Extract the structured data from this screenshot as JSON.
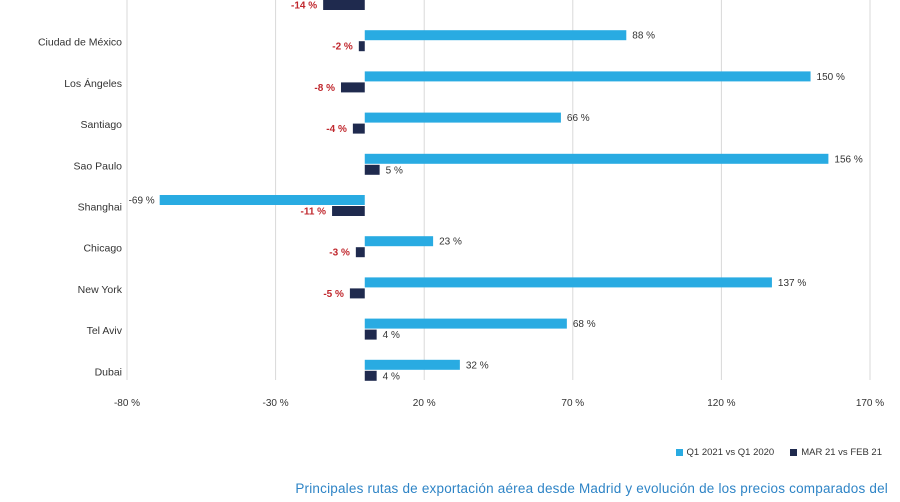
{
  "chart_data": {
    "type": "bar",
    "orientation": "horizontal",
    "categories": [
      "",
      "Ciudad de México",
      "Los Ángeles",
      "Santiago",
      "Sao Paulo",
      "Shanghai",
      "Chicago",
      "New York",
      "Tel Aviv",
      "Dubai"
    ],
    "series": [
      {
        "name": "Q1 2021 vs Q1 2020",
        "color": "#29abe2",
        "values": [
          null,
          88,
          150,
          66,
          156,
          -69,
          23,
          137,
          68,
          32
        ],
        "labels": [
          "",
          "88 %",
          "150 %",
          "66 %",
          "156 %",
          "-69 %",
          "23 %",
          "137 %",
          "68 %",
          "32 %"
        ]
      },
      {
        "name": "MAR 21 vs FEB 21",
        "color": "#1f2a4e",
        "values": [
          -14,
          -2,
          -8,
          -4,
          5,
          -11,
          -3,
          -5,
          4,
          4
        ],
        "labels": [
          "-14 %",
          "-2 %",
          "-8 %",
          "-4 %",
          "5 %",
          "-11 %",
          "-3 %",
          "-5 %",
          "4 %",
          "4 %"
        ]
      }
    ],
    "xlim": [
      -80,
      170
    ],
    "xticks": [
      -80,
      -30,
      20,
      70,
      120,
      170
    ],
    "xtick_labels": [
      "-80 %",
      "-30 %",
      "20 %",
      "70 %",
      "120 %",
      "170 %"
    ],
    "grid": "vertical",
    "legend": "bottom-right"
  },
  "legend": {
    "series1": "Q1 2021 vs Q1 2020",
    "series2": "MAR 21 vs FEB 21"
  },
  "caption": "Principales rutas de exportación aérea desde Madrid y evolución de los precios comparados del"
}
